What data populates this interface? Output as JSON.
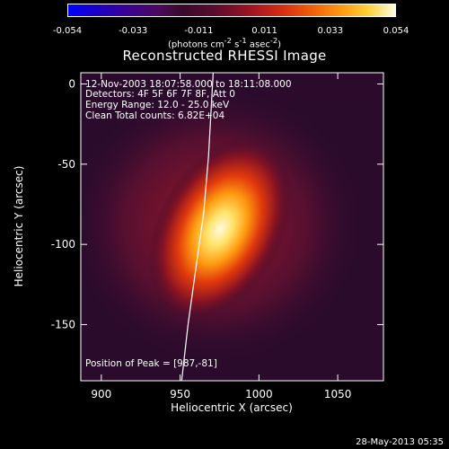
{
  "colorbar": {
    "ticks": [
      "-0.054",
      "-0.033",
      "-0.011",
      "0.011",
      "0.033",
      "0.054"
    ],
    "units_text": "(photons cm",
    "units_sup1": "-2",
    "units_mid": " s",
    "units_sup2": "-1",
    "units_end": " asec",
    "units_sup3": "-2",
    "units_close": ")"
  },
  "title": "Reconstructed RHESSI Image",
  "info": {
    "time": "12-Nov-2003 18:07:58.000 to 18:11:08.000",
    "detectors": "Detectors: 4F 5F 6F 7F 8F, Att 0",
    "energy": "Energy Range: 12.0 - 25.0 keV",
    "clean": "Clean     Total counts: 6.82E+04"
  },
  "peak_label": "Position of Peak = [987,-81]",
  "footer_timestamp": "28-May-2013 05:35",
  "chart_data": {
    "type": "heatmap",
    "title": "Reconstructed RHESSI Image",
    "xlabel": "Heliocentric X (arcsec)",
    "ylabel": "Heliocentric Y (arcsec)",
    "xlim": [
      887,
      1079
    ],
    "ylim": [
      -185,
      7
    ],
    "xticks": [
      900,
      950,
      1000,
      1050
    ],
    "yticks": [
      0,
      -50,
      -100,
      -150
    ],
    "colorbar_range": [
      -0.054,
      0.054
    ],
    "peak": [
      987,
      -81
    ],
    "limb_curve": [
      [
        951,
        -185
      ],
      [
        955,
        -150
      ],
      [
        960,
        -115
      ],
      [
        965,
        -80
      ],
      [
        968,
        -45
      ],
      [
        970,
        -10
      ],
      [
        971,
        7
      ]
    ]
  }
}
